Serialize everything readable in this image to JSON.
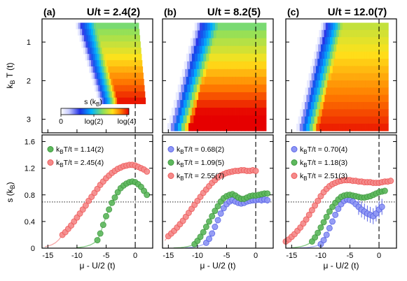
{
  "panels": [
    {
      "label": "(a)",
      "title": "U/t = 2.4(2)"
    },
    {
      "label": "(b)",
      "title": "U/t = 8.2(5)"
    },
    {
      "label": "(c)",
      "title": "U/t = 12.0(7)"
    }
  ],
  "axes": {
    "top_ylabel": "k",
    "top_ylabel_sub": "B",
    "top_ylabel_rest": " T (t)",
    "bottom_ylabel": "s (k",
    "bottom_ylabel_sub": "B",
    "bottom_ylabel_end": ")",
    "xlabel": "μ - U/2 (t)",
    "xticks": [
      "-15",
      "-10",
      "-5",
      "0"
    ],
    "top_yticks": [
      "1",
      "2",
      "3"
    ],
    "bottom_yticks": [
      "0",
      "0.4",
      "0.8",
      "1.2",
      "1.6"
    ]
  },
  "colorbar": {
    "label": "s",
    "label_paren": "(k",
    "label_sub": "B",
    "label_end": ")",
    "ticks": [
      "0",
      "log(2)",
      "log(4)"
    ]
  },
  "colors": {
    "blue": "#5b66e6",
    "green": "#3f9a3f",
    "red": "#ef5a5a",
    "blue_fill": "#8e96f5",
    "green_fill": "#5db85d",
    "red_fill": "#f48a8a"
  },
  "chart_data": {
    "type": "heatmap+scatter",
    "heatmaps": {
      "kBT_range": [
        0.4,
        3.35
      ],
      "color_scale": [
        "0",
        "log(2)",
        "log(4)"
      ],
      "note": "entropy maps vs chemical potential and temperature"
    },
    "reference_line_y": 0.693,
    "vertical_line_x": 0,
    "xlim": [
      -16,
      3
    ],
    "ylim_bottom": [
      0,
      1.7
    ],
    "series": [
      {
        "panel": 0,
        "name": "k",
        "name_sub": "B",
        "name_rest": "T/t = 1.14(2)",
        "color": "green",
        "x": [
          -6.5,
          -6.0,
          -5.5,
          -5.0,
          -4.5,
          -4.0,
          -3.5,
          -3.0,
          -2.5,
          -2.0,
          -1.5,
          -1.0,
          -0.5,
          0.0,
          0.5,
          1.0,
          1.5,
          2.0
        ],
        "y": [
          0.12,
          0.22,
          0.35,
          0.48,
          0.58,
          0.68,
          0.76,
          0.84,
          0.9,
          0.94,
          0.97,
          0.99,
          1.0,
          0.99,
          0.96,
          0.92,
          0.86,
          0.8
        ]
      },
      {
        "panel": 0,
        "name": "k",
        "name_sub": "B",
        "name_rest": "T/t = 2.45(4)",
        "color": "red",
        "x": [
          -12.5,
          -12.0,
          -11.5,
          -11.0,
          -10.5,
          -10.0,
          -9.5,
          -9.0,
          -8.5,
          -8.0,
          -7.5,
          -7.0,
          -6.5,
          -6.0,
          -5.5,
          -5.0,
          -4.5,
          -4.0,
          -3.5,
          -3.0,
          -2.5,
          -2.0,
          -1.5,
          -1.0,
          -0.5,
          0.0,
          0.5,
          1.0,
          1.5,
          2.0
        ],
        "y": [
          0.2,
          0.24,
          0.29,
          0.34,
          0.4,
          0.46,
          0.52,
          0.58,
          0.64,
          0.71,
          0.77,
          0.83,
          0.89,
          0.95,
          1.0,
          1.05,
          1.09,
          1.13,
          1.16,
          1.19,
          1.21,
          1.23,
          1.24,
          1.25,
          1.25,
          1.24,
          1.22,
          1.2,
          1.18,
          1.15
        ]
      },
      {
        "panel": 1,
        "name": "k",
        "name_sub": "B",
        "name_rest": "T/t = 0.68(2)",
        "color": "blue",
        "x": [
          -8.5,
          -8.0,
          -7.5,
          -7.0,
          -6.5,
          -6.0,
          -5.5,
          -5.0,
          -4.5,
          -4.0,
          -3.5,
          -3.0,
          -2.5,
          -2.0,
          -1.5,
          -1.0,
          -0.5,
          0.0,
          0.5,
          1.0,
          1.5,
          2.0
        ],
        "y": [
          0.08,
          0.14,
          0.22,
          0.32,
          0.42,
          0.52,
          0.6,
          0.66,
          0.7,
          0.72,
          0.7,
          0.68,
          0.67,
          0.68,
          0.7,
          0.71,
          0.72,
          0.72,
          0.73,
          0.72,
          0.73,
          0.72
        ]
      },
      {
        "panel": 1,
        "name": "k",
        "name_sub": "B",
        "name_rest": "T/t = 1.09(5)",
        "color": "green",
        "x": [
          -10.5,
          -10.0,
          -9.5,
          -9.0,
          -8.5,
          -8.0,
          -7.5,
          -7.0,
          -6.5,
          -6.0,
          -5.5,
          -5.0,
          -4.5,
          -4.0,
          -3.5,
          -3.0,
          -2.5,
          -2.0,
          -1.5,
          -1.0,
          -0.5,
          0.0,
          0.5,
          1.0,
          1.5,
          2.0
        ],
        "y": [
          0.06,
          0.11,
          0.17,
          0.24,
          0.32,
          0.4,
          0.48,
          0.56,
          0.63,
          0.7,
          0.75,
          0.78,
          0.8,
          0.81,
          0.79,
          0.76,
          0.74,
          0.74,
          0.76,
          0.78,
          0.79,
          0.79,
          0.8,
          0.81,
          0.82,
          0.82
        ]
      },
      {
        "panel": 1,
        "name": "k",
        "name_sub": "B",
        "name_rest": "T/t = 2.55(7)",
        "color": "red",
        "x": [
          -15.0,
          -14.5,
          -14.0,
          -13.5,
          -13.0,
          -12.5,
          -12.0,
          -11.5,
          -11.0,
          -10.5,
          -10.0,
          -9.5,
          -9.0,
          -8.5,
          -8.0,
          -7.5,
          -7.0,
          -6.5,
          -6.0,
          -5.5,
          -5.0,
          -4.5,
          -4.0,
          -3.5,
          -3.0,
          -2.5,
          -2.0,
          -1.5,
          -1.0,
          -0.5,
          0.0
        ],
        "y": [
          0.18,
          0.22,
          0.26,
          0.31,
          0.36,
          0.41,
          0.47,
          0.53,
          0.59,
          0.65,
          0.71,
          0.77,
          0.83,
          0.88,
          0.93,
          0.98,
          1.02,
          1.06,
          1.09,
          1.11,
          1.13,
          1.14,
          1.15,
          1.16,
          1.16,
          1.17,
          1.17,
          1.16,
          1.16,
          1.17,
          1.16
        ]
      },
      {
        "panel": 2,
        "name": "k",
        "name_sub": "B",
        "name_rest": "T/t = 0.70(4)",
        "color": "blue",
        "x": [
          -10.0,
          -9.5,
          -9.0,
          -8.5,
          -8.0,
          -7.5,
          -7.0,
          -6.5,
          -6.0,
          -5.5,
          -5.0,
          -4.5,
          -4.0,
          -3.5,
          -3.0,
          -2.5,
          -2.0,
          -1.5,
          -1.0,
          -0.5,
          0.0,
          0.5
        ],
        "y": [
          0.06,
          0.12,
          0.2,
          0.3,
          0.4,
          0.5,
          0.59,
          0.66,
          0.71,
          0.73,
          0.72,
          0.7,
          0.66,
          0.62,
          0.58,
          0.55,
          0.52,
          0.5,
          0.48,
          0.52,
          0.58,
          0.62
        ]
      },
      {
        "panel": 2,
        "name": "k",
        "name_sub": "B",
        "name_rest": "T/t = 1.18(3)",
        "color": "green",
        "x": [
          -11.5,
          -11.0,
          -10.5,
          -10.0,
          -9.5,
          -9.0,
          -8.5,
          -8.0,
          -7.5,
          -7.0,
          -6.5,
          -6.0,
          -5.5,
          -5.0,
          -4.5,
          -4.0,
          -3.5,
          -3.0,
          -2.5,
          -2.0,
          -1.5,
          -1.0,
          -0.5,
          0.0,
          0.5,
          1.0
        ],
        "y": [
          0.1,
          0.16,
          0.23,
          0.31,
          0.39,
          0.47,
          0.55,
          0.62,
          0.68,
          0.73,
          0.77,
          0.79,
          0.8,
          0.8,
          0.79,
          0.78,
          0.77,
          0.76,
          0.76,
          0.77,
          0.78,
          0.8,
          0.82,
          0.84,
          0.85,
          0.86
        ]
      },
      {
        "panel": 2,
        "name": "k",
        "name_sub": "B",
        "name_rest": "T/t = 2.51(3)",
        "color": "red",
        "x": [
          -16.0,
          -15.5,
          -15.0,
          -14.5,
          -14.0,
          -13.5,
          -13.0,
          -12.5,
          -12.0,
          -11.5,
          -11.0,
          -10.5,
          -10.0,
          -9.5,
          -9.0,
          -8.5,
          -8.0,
          -7.5,
          -7.0,
          -6.5,
          -6.0,
          -5.5,
          -5.0,
          -4.5,
          -4.0,
          -3.5,
          -3.0,
          -2.5,
          -2.0,
          -1.5,
          -1.0,
          -0.5,
          0.0,
          0.5,
          1.0,
          1.5,
          2.0
        ],
        "y": [
          0.1,
          0.13,
          0.17,
          0.21,
          0.26,
          0.31,
          0.37,
          0.43,
          0.5,
          0.57,
          0.64,
          0.71,
          0.78,
          0.84,
          0.89,
          0.93,
          0.96,
          0.98,
          1.0,
          1.01,
          1.02,
          1.02,
          1.02,
          1.01,
          1.01,
          1.0,
          1.0,
          0.99,
          0.99,
          0.99,
          0.98,
          0.98,
          0.98,
          0.99,
          1.0,
          1.0,
          1.01
        ]
      }
    ]
  }
}
